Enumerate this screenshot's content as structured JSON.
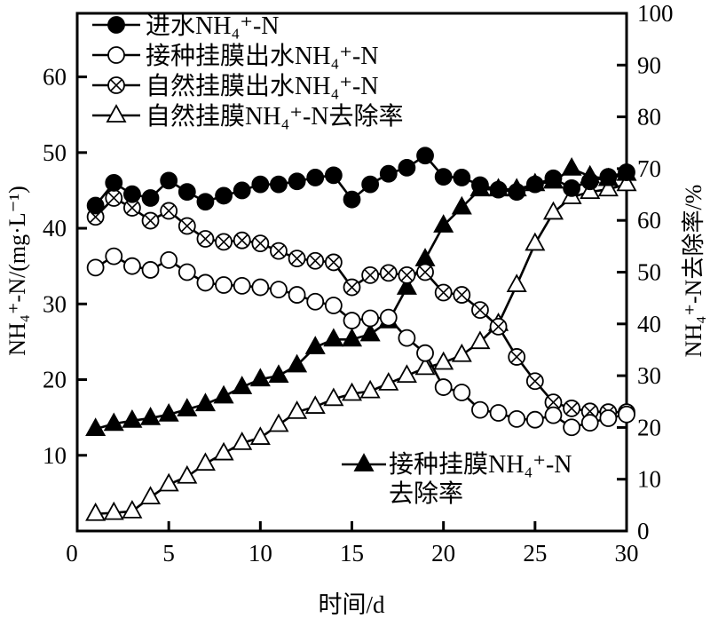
{
  "chart_data": {
    "type": "line",
    "xlabel": "时间/d",
    "ylabel_left": "NH₄⁺-N/(mg·L⁻¹)",
    "ylabel_right": "NH₄⁺-N去除率/%",
    "xlim": [
      0,
      30
    ],
    "ylim_left": [
      0,
      68.4
    ],
    "ylim_right": [
      0,
      100
    ],
    "xticks": [
      5,
      10,
      15,
      20,
      25,
      30
    ],
    "xtick_zero": "0",
    "yticks_left": [
      0,
      10,
      20,
      30,
      40,
      50,
      60
    ],
    "yticks_right": [
      0,
      10,
      20,
      30,
      40,
      50,
      60,
      70,
      80,
      90,
      100
    ],
    "grid": false,
    "x": [
      1,
      2,
      3,
      4,
      5,
      6,
      7,
      8,
      9,
      10,
      11,
      12,
      13,
      14,
      15,
      16,
      17,
      18,
      19,
      20,
      21,
      22,
      23,
      24,
      25,
      26,
      27,
      28,
      29,
      30
    ],
    "series": [
      {
        "name": "进水NH₄⁺-N",
        "axis": "left",
        "marker": "filled-circle",
        "values": [
          43.0,
          46.0,
          44.5,
          44.0,
          46.3,
          44.8,
          43.5,
          44.3,
          45.0,
          45.8,
          45.8,
          46.2,
          46.7,
          47.0,
          43.8,
          45.8,
          47.2,
          48.0,
          49.6,
          46.8,
          46.7,
          45.7,
          45.1,
          44.8,
          45.8,
          46.6,
          45.3,
          46.2,
          46.8,
          47.4
        ]
      },
      {
        "name": "接种挂膜出水NH₄⁺-N",
        "axis": "left",
        "marker": "open-circle",
        "values": [
          34.8,
          36.3,
          35.0,
          34.5,
          35.8,
          34.2,
          32.8,
          32.5,
          32.4,
          32.2,
          31.9,
          31.2,
          30.3,
          29.8,
          27.8,
          28.1,
          28.2,
          25.5,
          23.5,
          19.0,
          18.3,
          16.0,
          15.6,
          14.8,
          14.7,
          15.3,
          13.7,
          14.3,
          14.9,
          15.4
        ]
      },
      {
        "name": "自然挂膜出水NH₄⁺-N",
        "axis": "left",
        "marker": "crossed-circle",
        "values": [
          41.5,
          44.0,
          42.7,
          41.0,
          42.3,
          40.3,
          38.6,
          38.2,
          38.4,
          38.0,
          37.0,
          36.0,
          35.7,
          35.5,
          32.2,
          33.8,
          34.1,
          33.8,
          34.2,
          31.5,
          31.2,
          29.2,
          27.0,
          23.0,
          19.8,
          17.0,
          16.2,
          15.8,
          15.7,
          15.7
        ]
      },
      {
        "name": "自然挂膜NH₄⁺-N去除率",
        "axis": "right",
        "marker": "open-triangle",
        "values": [
          3.3,
          3.5,
          3.8,
          6.5,
          9.0,
          10.5,
          13.0,
          15.0,
          17.0,
          18.0,
          20.5,
          23.0,
          24.0,
          25.5,
          26.5,
          27.0,
          28.5,
          30.0,
          31.5,
          32.5,
          34.0,
          36.5,
          40.0,
          47.5,
          55.5,
          61.5,
          64.5,
          65.5,
          66.0,
          67.0
        ]
      },
      {
        "name": "接种挂膜NH₄⁺-N去除率",
        "axis": "right",
        "marker": "filled-triangle",
        "values": [
          19.7,
          20.7,
          21.3,
          21.8,
          22.5,
          23.5,
          24.5,
          26.0,
          27.8,
          29.3,
          30.0,
          32.0,
          35.5,
          37.0,
          37.0,
          38.0,
          40.5,
          47.0,
          52.5,
          59.0,
          62.5,
          66.0,
          66.0,
          66.0,
          67.0,
          67.5,
          70.0,
          68.5,
          68.0,
          69.0
        ]
      }
    ],
    "legend_main": {
      "placement": "top-left",
      "entries": [
        "进水NH₄⁺-N",
        "接种挂膜出水NH₄⁺-N",
        "自然挂膜出水NH₄⁺-N",
        "自然挂膜NH₄⁺-N去除率"
      ]
    },
    "legend_secondary": {
      "placement": "bottom-right",
      "line1": "接种挂膜NH₄⁺-N",
      "line2": "去除率"
    }
  }
}
